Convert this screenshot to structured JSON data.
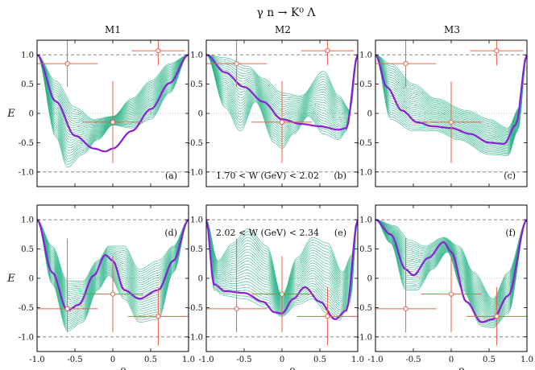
{
  "figure": {
    "title": "γ  n → K⁰ Λ",
    "columns": [
      "M1",
      "M2",
      "M3"
    ]
  },
  "colors": {
    "band": "#2db38a",
    "central": "#8a1fd6",
    "data": "#e8604a",
    "dashed": "#777777",
    "dotted": "#aaaaaa"
  },
  "chart_data": [
    {
      "type": "line",
      "label": "(a)",
      "column": "M1",
      "row": 1,
      "xlabel": "",
      "ylabel": "E",
      "xlim": [
        -1,
        1
      ],
      "ylim": [
        -1.25,
        1.25
      ],
      "xticks": [
        "-1.0",
        "-0.5",
        "0",
        "0.5",
        "1.0"
      ],
      "yticks": [
        "1.0",
        "0.5",
        "0",
        "-0.5",
        "-1.0"
      ],
      "reference_lines": {
        "dashed": [
          1,
          -1
        ],
        "dotted": [
          0
        ]
      },
      "central_curve": {
        "x": [
          -1,
          -0.75,
          -0.5,
          -0.25,
          -0.1,
          0,
          0.25,
          0.5,
          0.75,
          1
        ],
        "y": [
          1,
          0.2,
          -0.38,
          -0.6,
          -0.65,
          -0.6,
          -0.3,
          0.07,
          0.52,
          1
        ]
      },
      "band_min": {
        "x": [
          -1,
          -0.75,
          -0.6,
          -0.4,
          -0.2,
          0,
          0.25,
          0.5,
          0.75,
          1
        ],
        "y": [
          1,
          -0.4,
          -0.92,
          -0.7,
          -0.45,
          -0.2,
          -0.25,
          -0.1,
          0.35,
          1
        ]
      },
      "band_max": {
        "x": [
          -1,
          -0.75,
          -0.5,
          -0.25,
          0,
          0.25,
          0.5,
          0.75,
          1
        ],
        "y": [
          1,
          0.55,
          0.1,
          -0.1,
          -0.05,
          0.25,
          0.55,
          0.85,
          1
        ]
      },
      "data_points": [
        {
          "x": -0.6,
          "y": 0.85,
          "xerr": 0.4,
          "yerr": [
            0.4,
            1.4
          ]
        },
        {
          "x": 0.0,
          "y": -0.15,
          "xerr": 0.4,
          "yerr": [
            0.7,
            0.7
          ]
        },
        {
          "x": 0.6,
          "y": 1.07,
          "xerr": 0.35,
          "yerr": [
            0.25,
            0.9
          ]
        }
      ],
      "annotation": ""
    },
    {
      "type": "line",
      "label": "(b)",
      "column": "M2",
      "row": 1,
      "xlabel": "",
      "ylabel": "",
      "xlim": [
        -1,
        1
      ],
      "ylim": [
        -1.25,
        1.25
      ],
      "xticks": [
        "-1.0",
        "-0.5",
        "0",
        "0.5",
        "1.0"
      ],
      "yticks": [
        "1.0",
        "0.5",
        "0",
        "-0.5",
        "-1.0"
      ],
      "reference_lines": {
        "dashed": [
          1,
          -1
        ],
        "dotted": [
          0
        ]
      },
      "central_curve": {
        "x": [
          -1,
          -0.75,
          -0.5,
          -0.25,
          0,
          0.25,
          0.5,
          0.75,
          0.85,
          1
        ],
        "y": [
          1,
          0.7,
          0.45,
          0.2,
          -0.1,
          -0.18,
          -0.22,
          -0.28,
          -0.25,
          1
        ]
      },
      "band_min": {
        "x": [
          -1,
          -0.75,
          -0.55,
          -0.35,
          -0.1,
          0,
          0.15,
          0.35,
          0.55,
          0.75,
          0.85,
          1
        ],
        "y": [
          1,
          0.1,
          -0.3,
          0.2,
          -0.5,
          -0.6,
          -0.35,
          -0.05,
          -0.35,
          -0.45,
          -0.3,
          1
        ]
      },
      "band_max": {
        "x": [
          -1,
          -0.75,
          -0.45,
          -0.25,
          0,
          0.25,
          0.55,
          0.75,
          0.9,
          1
        ],
        "y": [
          1,
          0.95,
          0.8,
          0.6,
          0.35,
          0.3,
          0.72,
          0.3,
          0.05,
          1
        ]
      },
      "data_points": [
        {
          "x": -0.6,
          "y": 0.85,
          "xerr": 0.4,
          "yerr": [
            0.4,
            1.4
          ]
        },
        {
          "x": 0.0,
          "y": -0.15,
          "xerr": 0.4,
          "yerr": [
            0.7,
            0.7
          ]
        },
        {
          "x": 0.6,
          "y": 1.07,
          "xerr": 0.35,
          "yerr": [
            0.25,
            0.9
          ]
        }
      ],
      "annotation": "1.70 < W (GeV) < 2.02"
    },
    {
      "type": "line",
      "label": "(c)",
      "column": "M3",
      "row": 1,
      "xlabel": "",
      "ylabel": "",
      "xlim": [
        -1,
        1
      ],
      "ylim": [
        -1.25,
        1.25
      ],
      "xticks": [
        "-1.0",
        "-0.5",
        "0",
        "0.5",
        "1.0"
      ],
      "yticks": [
        "1.0",
        "0.5",
        "0",
        "-0.5",
        "-1.0"
      ],
      "reference_lines": {
        "dashed": [
          1,
          -1
        ],
        "dotted": [
          0
        ]
      },
      "central_curve": {
        "x": [
          -1,
          -0.85,
          -0.65,
          -0.45,
          -0.25,
          0,
          0.25,
          0.5,
          0.7,
          0.85,
          1
        ],
        "y": [
          1,
          0.45,
          0.05,
          -0.15,
          -0.22,
          -0.25,
          -0.35,
          -0.5,
          -0.52,
          -0.2,
          1
        ]
      },
      "band_min": {
        "x": [
          -1,
          -0.8,
          -0.5,
          -0.2,
          0.1,
          0.5,
          0.75,
          0.88,
          1
        ],
        "y": [
          1,
          -0.1,
          -0.3,
          -0.3,
          -0.45,
          -0.7,
          -0.72,
          -0.3,
          1
        ]
      },
      "band_max": {
        "x": [
          -1,
          -0.8,
          -0.5,
          -0.2,
          0.2,
          0.5,
          0.75,
          0.9,
          1
        ],
        "y": [
          1,
          0.85,
          0.5,
          0.25,
          0.05,
          -0.1,
          -0.25,
          0.1,
          1
        ]
      },
      "data_points": [
        {
          "x": -0.6,
          "y": 0.85,
          "xerr": 0.4,
          "yerr": [
            0.4,
            1.4
          ]
        },
        {
          "x": 0.0,
          "y": -0.15,
          "xerr": 0.4,
          "yerr": [
            0.7,
            0.7
          ]
        },
        {
          "x": 0.6,
          "y": 1.07,
          "xerr": 0.35,
          "yerr": [
            0.25,
            0.9
          ]
        }
      ],
      "annotation": ""
    },
    {
      "type": "line",
      "label": "(d)",
      "column": "M1",
      "row": 2,
      "xlabel": "cos θ",
      "ylabel": "E",
      "xlim": [
        -1,
        1
      ],
      "ylim": [
        -1.25,
        1.25
      ],
      "xticks": [
        "-1.0",
        "-0.5",
        "0",
        "0.5",
        "1.0"
      ],
      "yticks": [
        "1.0",
        "0.5",
        "0",
        "-0.5",
        "-1.0"
      ],
      "reference_lines": {
        "dashed": [
          1,
          -1
        ],
        "dotted": [
          0
        ]
      },
      "central_curve": {
        "x": [
          -1,
          -0.8,
          -0.6,
          -0.45,
          -0.25,
          -0.1,
          0,
          0.15,
          0.35,
          0.6,
          0.8,
          1
        ],
        "y": [
          1,
          0.1,
          -0.55,
          -0.45,
          0.05,
          0.4,
          0.3,
          -0.2,
          -0.35,
          -0.2,
          0.3,
          1
        ]
      },
      "band_min": {
        "x": [
          -1,
          -0.8,
          -0.6,
          -0.4,
          -0.2,
          -0.05,
          0.15,
          0.35,
          0.6,
          0.8,
          1
        ],
        "y": [
          1,
          -0.1,
          -0.9,
          -0.75,
          -0.2,
          0.05,
          -0.35,
          -0.75,
          -0.7,
          0.1,
          1
        ]
      },
      "band_max": {
        "x": [
          -1,
          -0.8,
          -0.6,
          -0.4,
          -0.2,
          -0.05,
          0.15,
          0.35,
          0.6,
          0.8,
          1
        ],
        "y": [
          1,
          0.55,
          -0.05,
          -0.05,
          0.3,
          0.55,
          0.55,
          0.15,
          0.3,
          0.55,
          1
        ]
      },
      "data_points": [
        {
          "x": -0.6,
          "y": -0.52,
          "xerr": 0.4,
          "yerr": [
            0.4,
            1.2
          ]
        },
        {
          "x": 0.0,
          "y": -0.27,
          "xerr": 0.4,
          "yerr": [
            0.65,
            0.65
          ]
        },
        {
          "x": 0.6,
          "y": -0.65,
          "xerr": 0.4,
          "yerr": [
            0.5,
            0.5
          ]
        }
      ],
      "annotation": ""
    },
    {
      "type": "line",
      "label": "(e)",
      "column": "M2",
      "row": 2,
      "xlabel": "cos θ",
      "ylabel": "",
      "xlim": [
        -1,
        1
      ],
      "ylim": [
        -1.25,
        1.25
      ],
      "xticks": [
        "-1.0",
        "-0.5",
        "0",
        "0.5",
        "1.0"
      ],
      "yticks": [
        "1.0",
        "0.5",
        "0",
        "-0.5",
        "-1.0"
      ],
      "reference_lines": {
        "dashed": [
          1,
          -1
        ],
        "dotted": [
          0
        ]
      },
      "central_curve": {
        "x": [
          -1,
          -0.9,
          -0.75,
          -0.5,
          -0.25,
          -0.1,
          0,
          0.15,
          0.3,
          0.5,
          0.7,
          0.85,
          1
        ],
        "y": [
          1,
          -0.1,
          -0.22,
          -0.25,
          -0.4,
          -0.58,
          -0.6,
          -0.35,
          -0.15,
          -0.4,
          -0.7,
          -0.55,
          1
        ]
      },
      "band_min": {
        "x": [
          -1,
          -0.9,
          -0.75,
          -0.5,
          -0.2,
          0,
          0.2,
          0.4,
          0.6,
          0.75,
          0.9,
          1
        ],
        "y": [
          1,
          -0.2,
          -0.3,
          -0.35,
          -0.5,
          -0.65,
          -0.45,
          -0.35,
          -0.6,
          -0.72,
          -0.4,
          1
        ]
      },
      "band_max": {
        "x": [
          -1,
          -0.85,
          -0.65,
          -0.45,
          -0.2,
          0,
          0.2,
          0.4,
          0.6,
          0.8,
          0.92,
          1
        ],
        "y": [
          1,
          0.3,
          0.6,
          0.85,
          0.55,
          -0.3,
          0.35,
          0.7,
          0.6,
          0.1,
          0.4,
          1
        ]
      },
      "data_points": [
        {
          "x": -0.6,
          "y": -0.52,
          "xerr": 0.4,
          "yerr": [
            0.4,
            1.2
          ]
        },
        {
          "x": 0.0,
          "y": -0.27,
          "xerr": 0.4,
          "yerr": [
            0.65,
            0.65
          ]
        },
        {
          "x": 0.6,
          "y": -0.65,
          "xerr": 0.4,
          "yerr": [
            0.5,
            0.5
          ]
        }
      ],
      "annotation": "2.02 < W (GeV) < 2.34"
    },
    {
      "type": "line",
      "label": "(f)",
      "column": "M3",
      "row": 2,
      "xlabel": "cos θ",
      "ylabel": "",
      "xlim": [
        -1,
        1
      ],
      "ylim": [
        -1.25,
        1.25
      ],
      "xticks": [
        "-1.0",
        "-0.5",
        "0",
        "0.5",
        "1.0"
      ],
      "yticks": [
        "1.0",
        "0.5",
        "0",
        "-0.5",
        "-1.0"
      ],
      "reference_lines": {
        "dashed": [
          1,
          -1
        ],
        "dotted": [
          0
        ]
      },
      "central_curve": {
        "x": [
          -1,
          -0.8,
          -0.6,
          -0.5,
          -0.3,
          -0.1,
          0,
          0.2,
          0.4,
          0.55,
          0.75,
          1
        ],
        "y": [
          1,
          0.75,
          0.15,
          0.05,
          0.35,
          0.62,
          0.45,
          -0.4,
          -0.75,
          -0.7,
          -0.3,
          1
        ]
      },
      "band_min": {
        "x": [
          -1,
          -0.8,
          -0.6,
          -0.45,
          -0.25,
          -0.05,
          0.15,
          0.4,
          0.55,
          0.75,
          1
        ],
        "y": [
          1,
          0.6,
          -0.2,
          -0.2,
          0.15,
          0.45,
          -0.2,
          -0.82,
          -0.85,
          -0.6,
          1
        ]
      },
      "band_max": {
        "x": [
          -1,
          -0.75,
          -0.55,
          -0.35,
          -0.1,
          0.1,
          0.3,
          0.55,
          0.75,
          1
        ],
        "y": [
          1,
          0.9,
          0.65,
          0.55,
          0.7,
          0.55,
          0.1,
          -0.35,
          0.1,
          1
        ]
      },
      "data_points": [
        {
          "x": -0.6,
          "y": -0.52,
          "xerr": 0.4,
          "yerr": [
            0.4,
            1.2
          ]
        },
        {
          "x": 0.0,
          "y": -0.27,
          "xerr": 0.4,
          "yerr": [
            0.65,
            0.65
          ]
        },
        {
          "x": 0.6,
          "y": -0.65,
          "xerr": 0.4,
          "yerr": [
            0.5,
            0.5
          ]
        }
      ],
      "annotation": ""
    }
  ]
}
